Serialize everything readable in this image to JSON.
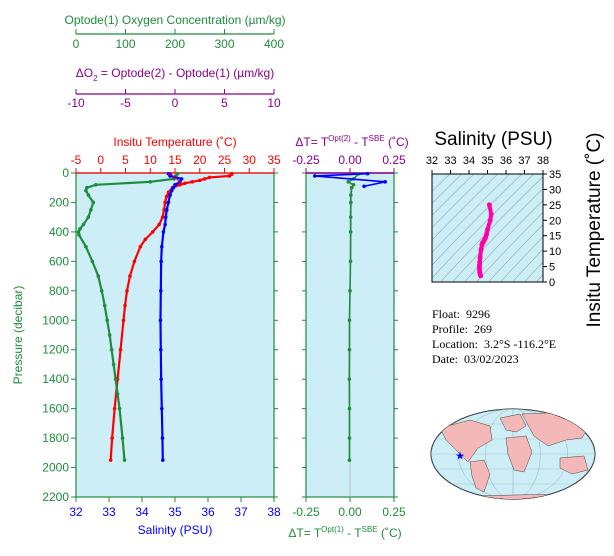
{
  "colors": {
    "background": "#ffffff",
    "panel_fill": "#cdeef7",
    "temperature": "#ff0000",
    "salinity": "#0000ff",
    "oxygen": "#1e8c3c",
    "delta_o2": "#8b008b",
    "ts_fill": "#cdeef7",
    "ts_line": "#ff00aa",
    "map_ocean": "#cdeef7",
    "map_land": "#f5b8b8",
    "float_marker": "#0000ff"
  },
  "info": {
    "float_label": "Float:",
    "float_value": "9296",
    "profile_label": "Profile:",
    "profile_value": "269",
    "location_label": "Location:",
    "location_value": "3.2°S  -116.2°E",
    "date_label": "Date:",
    "date_value": "03/02/2023"
  },
  "chart_data": [
    {
      "type": "line",
      "title": "",
      "ylabel": "Pressure (decibar)",
      "ylim": [
        2200,
        0
      ],
      "yticks": [
        0,
        200,
        400,
        600,
        800,
        1000,
        1200,
        1400,
        1600,
        1800,
        2000,
        2200
      ],
      "axes": {
        "oxygen": {
          "label": "Optode(1) Oxygen Concentration (µm/kg)",
          "lim": [
            0,
            400
          ],
          "ticks": [
            0,
            100,
            200,
            300,
            400
          ],
          "position": "top"
        },
        "delta_o2": {
          "label_parts": [
            "ΔO",
            "2",
            " = Optode(2) - Optode(1)     (µm/kg)"
          ],
          "lim": [
            -10,
            10
          ],
          "ticks": [
            -10,
            -5,
            0,
            5,
            10
          ],
          "position": "top"
        },
        "temperature": {
          "label": "Insitu Temperature (˚C)",
          "lim": [
            -5,
            35
          ],
          "ticks": [
            -5,
            0,
            5,
            10,
            15,
            20,
            25,
            30,
            35
          ],
          "position": "top"
        },
        "salinity": {
          "label": "Salinity (PSU)",
          "lim": [
            32,
            38
          ],
          "ticks": [
            32,
            33,
            34,
            35,
            36,
            37,
            38
          ],
          "position": "bottom"
        }
      },
      "series": [
        {
          "name": "Insitu Temperature",
          "axis": "temperature",
          "pressure": [
            5,
            10,
            20,
            30,
            40,
            50,
            60,
            70,
            80,
            100,
            130,
            160,
            200,
            250,
            300,
            350,
            400,
            450,
            500,
            600,
            700,
            800,
            900,
            1000,
            1200,
            1400,
            1600,
            1800,
            1950
          ],
          "values": [
            26.5,
            26.4,
            26.0,
            22.0,
            21.0,
            20.0,
            18.5,
            17.0,
            16.0,
            14.5,
            13.7,
            13.3,
            13.0,
            12.8,
            12.5,
            11.8,
            10.5,
            9.0,
            8.0,
            6.8,
            5.9,
            5.3,
            4.9,
            4.6,
            4.0,
            3.4,
            2.8,
            2.3,
            2.0
          ]
        },
        {
          "name": "Salinity",
          "axis": "salinity",
          "pressure": [
            5,
            20,
            40,
            60,
            80,
            100,
            120,
            150,
            200,
            250,
            300,
            350,
            400,
            500,
            600,
            800,
            1000,
            1200,
            1400,
            1600,
            1800,
            1950
          ],
          "values": [
            34.8,
            34.85,
            35.2,
            35.15,
            35.0,
            34.95,
            34.9,
            34.85,
            34.8,
            34.75,
            34.72,
            34.7,
            34.65,
            34.6,
            34.58,
            34.57,
            34.56,
            34.57,
            34.58,
            34.6,
            34.62,
            34.63
          ]
        },
        {
          "name": "Optode(1) Oxygen Concentration",
          "axis": "oxygen",
          "pressure": [
            5,
            20,
            40,
            60,
            80,
            100,
            120,
            150,
            200,
            250,
            300,
            350,
            380,
            400,
            420,
            500,
            600,
            700,
            800,
            900,
            1000,
            1100,
            1200,
            1300,
            1400,
            1500,
            1600,
            1800,
            1950
          ],
          "values": [
            205,
            202,
            198,
            150,
            40,
            22,
            20,
            25,
            35,
            30,
            25,
            15,
            8,
            5,
            6,
            20,
            33,
            45,
            52,
            58,
            63,
            68,
            72,
            76,
            80,
            84,
            88,
            94,
            98
          ]
        },
        {
          "name": "ΔO2",
          "axis": "delta_o2",
          "pressure": [
            5,
            30,
            60
          ],
          "values": [
            -0.5,
            0.0,
            0.5
          ]
        }
      ]
    },
    {
      "type": "line",
      "title": "",
      "top_axis": {
        "label_parts": [
          "ΔT= T",
          "Opt(2)",
          " - T",
          "SBE",
          " (˚C)"
        ],
        "lim": [
          -0.25,
          0.25
        ],
        "ticks": [
          -0.25,
          0.0,
          0.25
        ],
        "tick_labels": [
          "-0.25",
          "0.00",
          "0.25"
        ]
      },
      "bottom_axis": {
        "label_parts": [
          "ΔT= T",
          "Opt(1)",
          " - T",
          "SBE",
          " (˚C)"
        ],
        "lim": [
          -0.25,
          0.25
        ],
        "ticks": [
          -0.25,
          0.0,
          0.25
        ],
        "tick_labels": [
          "-0.25",
          "0.00",
          "0.25"
        ]
      },
      "ylim": [
        2200,
        0
      ],
      "series": [
        {
          "name": "ΔT Opt(1)",
          "axis": "bottom",
          "pressure": [
            5,
            40,
            60,
            80,
            100,
            150,
            200,
            300,
            400,
            600,
            800,
            1000,
            1200,
            1400,
            1600,
            1800,
            1950
          ],
          "values": [
            0.05,
            0.02,
            -0.01,
            0.02,
            0.01,
            0.005,
            0.005,
            0.004,
            0.004,
            0.003,
            0.0,
            -0.003,
            -0.003,
            -0.004,
            -0.003,
            -0.003,
            -0.003
          ]
        },
        {
          "name": "ΔT Opt(2)",
          "axis": "top",
          "pressure": [
            5,
            20,
            60,
            90
          ],
          "values": [
            0.1,
            -0.2,
            0.2,
            0.08
          ]
        }
      ]
    },
    {
      "type": "scatter",
      "title": "",
      "xlabel": "Salinity (PSU)",
      "ylabel": "Insitu Temperature (˚C)",
      "xlim": [
        32,
        38
      ],
      "ylim": [
        0,
        35
      ],
      "xticks": [
        32,
        33,
        34,
        35,
        36,
        37,
        38
      ],
      "yticks": [
        0,
        5,
        10,
        15,
        20,
        25,
        30,
        35
      ],
      "points": {
        "salinity": [
          34.63,
          34.6,
          34.58,
          34.57,
          34.56,
          34.57,
          34.58,
          34.6,
          34.65,
          34.7,
          34.72,
          34.75,
          34.8,
          34.85,
          34.9,
          34.95,
          35.0,
          35.15,
          35.2,
          35.1
        ],
        "temperature": [
          2.0,
          2.5,
          3.2,
          4.0,
          4.8,
          5.5,
          6.5,
          8.0,
          10.5,
          12.0,
          12.5,
          12.8,
          13.2,
          13.8,
          14.5,
          15.5,
          17.0,
          20.0,
          22.0,
          25.0
        ]
      }
    },
    {
      "type": "other",
      "map": "world",
      "float_position": {
        "lat": -3.2,
        "lon": -116.2
      }
    }
  ]
}
